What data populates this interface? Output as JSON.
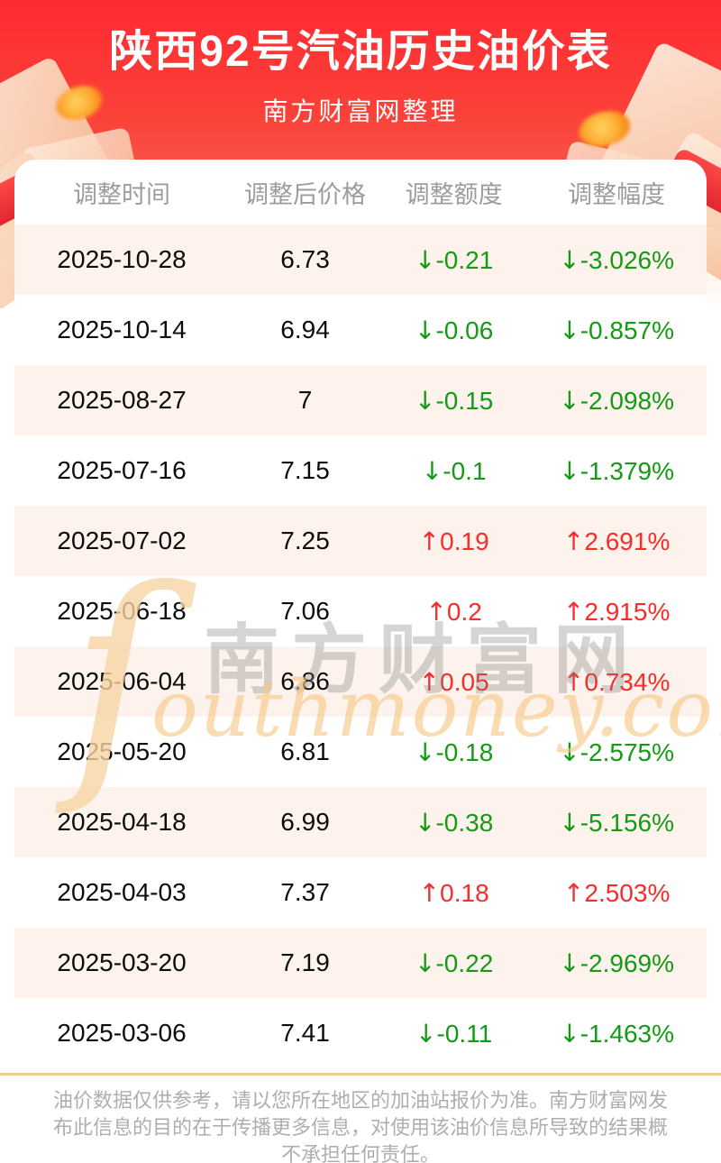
{
  "header": {
    "title": "陕西92号汽油历史油价表",
    "subtitle": "南方财富网整理"
  },
  "table": {
    "columns": [
      "调整时间",
      "调整后价格",
      "调整额度",
      "调整幅度"
    ],
    "rows": [
      {
        "date": "2025-10-28",
        "price": "6.73",
        "change": "-0.21",
        "pct": "-3.026%",
        "direction": "down"
      },
      {
        "date": "2025-10-14",
        "price": "6.94",
        "change": "-0.06",
        "pct": "-0.857%",
        "direction": "down"
      },
      {
        "date": "2025-08-27",
        "price": "7",
        "change": "-0.15",
        "pct": "-2.098%",
        "direction": "down"
      },
      {
        "date": "2025-07-16",
        "price": "7.15",
        "change": "-0.1",
        "pct": "-1.379%",
        "direction": "down"
      },
      {
        "date": "2025-07-02",
        "price": "7.25",
        "change": "0.19",
        "pct": "2.691%",
        "direction": "up"
      },
      {
        "date": "2025-06-18",
        "price": "7.06",
        "change": "0.2",
        "pct": "2.915%",
        "direction": "up"
      },
      {
        "date": "2025-06-04",
        "price": "6.86",
        "change": "0.05",
        "pct": "0.734%",
        "direction": "up"
      },
      {
        "date": "2025-05-20",
        "price": "6.81",
        "change": "-0.18",
        "pct": "-2.575%",
        "direction": "down"
      },
      {
        "date": "2025-04-18",
        "price": "6.99",
        "change": "-0.38",
        "pct": "-5.156%",
        "direction": "down"
      },
      {
        "date": "2025-04-03",
        "price": "7.37",
        "change": "0.18",
        "pct": "2.503%",
        "direction": "up"
      },
      {
        "date": "2025-03-20",
        "price": "7.19",
        "change": "-0.22",
        "pct": "-2.969%",
        "direction": "down"
      },
      {
        "date": "2025-03-06",
        "price": "7.41",
        "change": "-0.11",
        "pct": "-1.463%",
        "direction": "down"
      }
    ]
  },
  "icons": {
    "up_arrow": "↑",
    "down_arrow": "↓"
  },
  "watermark": {
    "initial": "ſ",
    "cn": "南方财富网",
    "en": "outhmoney.com"
  },
  "footer": {
    "disclaimer": "油价数据仅供参考，请以您所在地区的加油站报价为准。南方财富网发布此信息的目的在于传播更多信息，对使用该油价信息所导致的结果概不承担任何责任。"
  },
  "colors": {
    "banner_red_top": "#ff2a33",
    "banner_red_bottom": "#f4604e",
    "row_alt_bg": "#fdf3ec",
    "up_red": "#f92b2b",
    "down_green": "#149a14",
    "footer_border": "#f7c88d",
    "header_text_gray": "#9c9c9c"
  }
}
